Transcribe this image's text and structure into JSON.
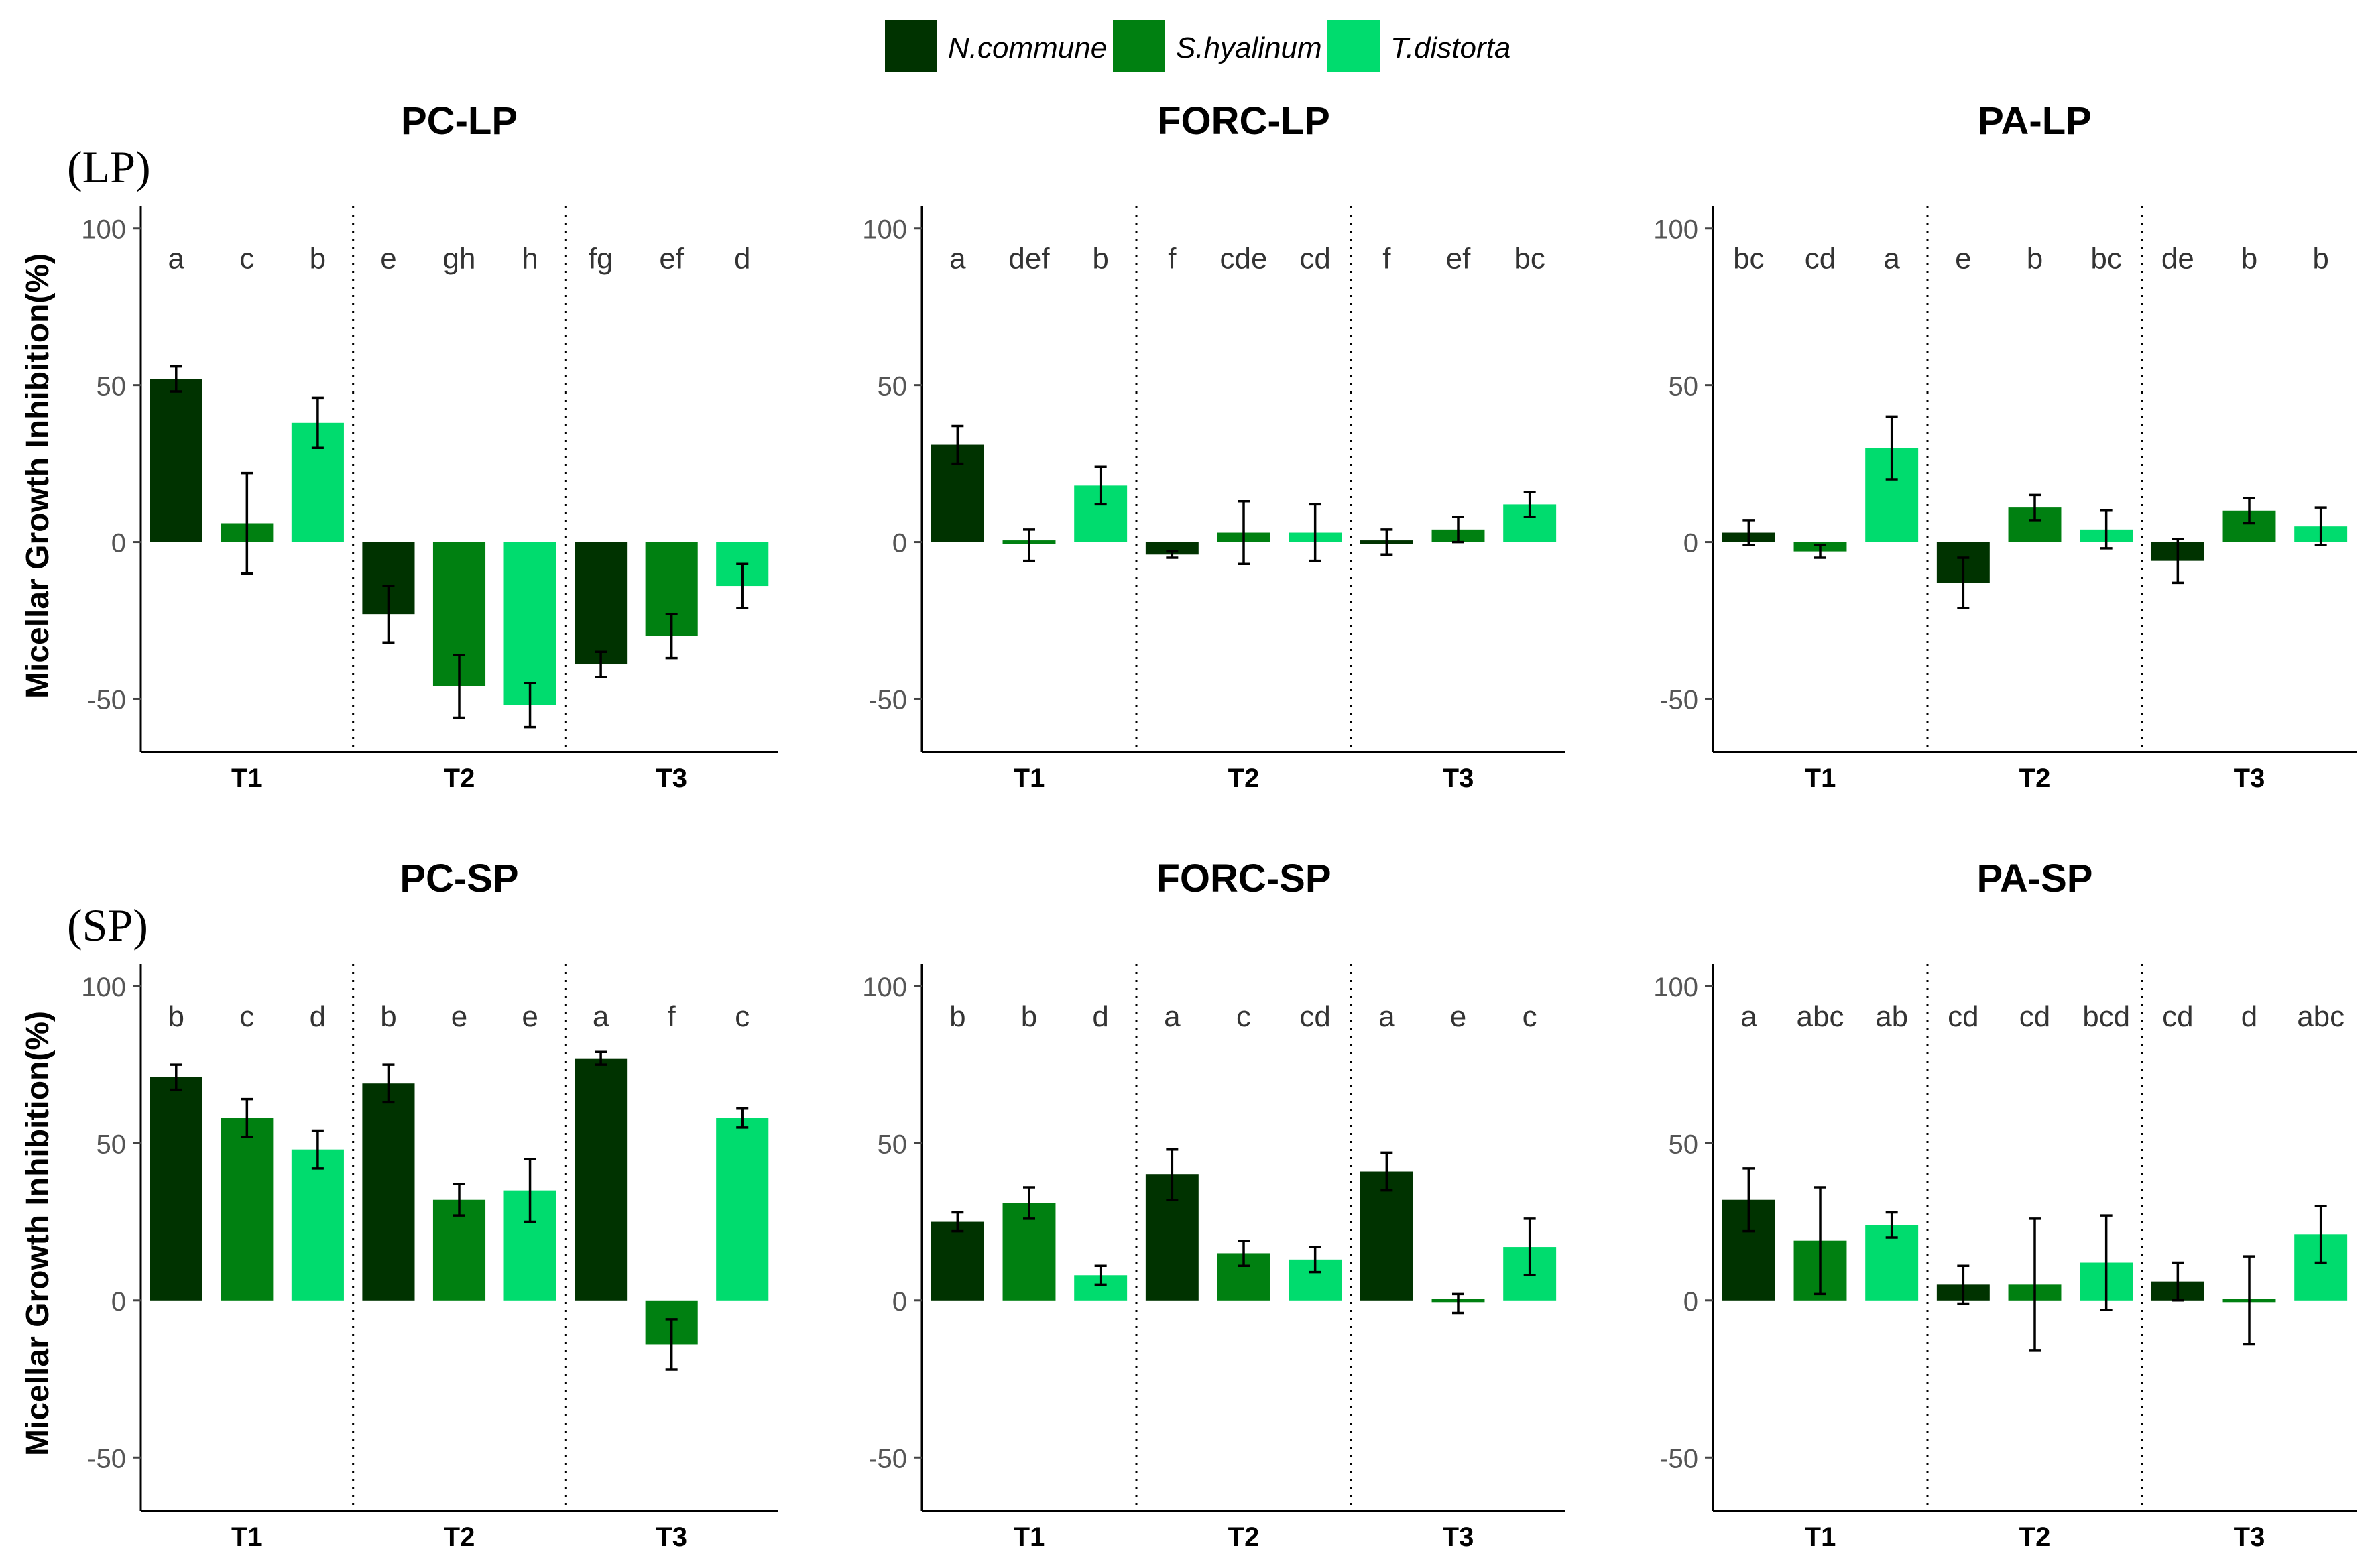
{
  "series_colors": [
    "#003300",
    "#008011",
    "#00DC6E"
  ],
  "legend": {
    "entries": [
      "N.commune",
      "S.hyalinum",
      "T.distorta"
    ]
  },
  "row_labels": [
    "(LP)",
    "(SP)"
  ],
  "ylabel": "Micellar Growth Inhibition(%)",
  "chart_data": [
    {
      "type": "bar",
      "title": "PC-LP",
      "ylim": [
        -67,
        107
      ],
      "yticks": [
        100,
        50,
        0,
        -50
      ],
      "groups": [
        "T1",
        "T2",
        "T3"
      ],
      "series_names": [
        "N.commune",
        "S.hyalinum",
        "T.distorta"
      ],
      "values": [
        52,
        6,
        38,
        -23,
        -46,
        -52,
        -39,
        -30,
        -14
      ],
      "errors": [
        4,
        16,
        8,
        9,
        10,
        7,
        4,
        7,
        7
      ],
      "letters": [
        "a",
        "c",
        "b",
        "e",
        "gh",
        "h",
        "fg",
        "ef",
        "d"
      ]
    },
    {
      "type": "bar",
      "title": "FORC-LP",
      "ylim": [
        -67,
        107
      ],
      "yticks": [
        100,
        50,
        0,
        -50
      ],
      "groups": [
        "T1",
        "T2",
        "T3"
      ],
      "series_names": [
        "N.commune",
        "S.hyalinum",
        "T.distorta"
      ],
      "values": [
        31,
        -1,
        18,
        -4,
        3,
        3,
        0,
        4,
        12
      ],
      "errors": [
        6,
        5,
        6,
        1,
        10,
        9,
        4,
        4,
        4
      ],
      "letters": [
        "a",
        "def",
        "b",
        "f",
        "cde",
        "cd",
        "f",
        "ef",
        "bc"
      ]
    },
    {
      "type": "bar",
      "title": "PA-LP",
      "ylim": [
        -67,
        107
      ],
      "yticks": [
        100,
        50,
        0,
        -50
      ],
      "groups": [
        "T1",
        "T2",
        "T3"
      ],
      "series_names": [
        "N.commune",
        "S.hyalinum",
        "T.distorta"
      ],
      "values": [
        3,
        -3,
        30,
        -13,
        11,
        4,
        -6,
        10,
        5
      ],
      "errors": [
        4,
        2,
        10,
        8,
        4,
        6,
        7,
        4,
        6
      ],
      "letters": [
        "bc",
        "cd",
        "a",
        "e",
        "b",
        "bc",
        "de",
        "b",
        "b"
      ]
    },
    {
      "type": "bar",
      "title": "PC-SP",
      "ylim": [
        -67,
        107
      ],
      "yticks": [
        100,
        50,
        0,
        -50
      ],
      "groups": [
        "T1",
        "T2",
        "T3"
      ],
      "series_names": [
        "N.commune",
        "S.hyalinum",
        "T.distorta"
      ],
      "values": [
        71,
        58,
        48,
        69,
        32,
        35,
        77,
        -14,
        58
      ],
      "errors": [
        4,
        6,
        6,
        6,
        5,
        10,
        2,
        8,
        3
      ],
      "letters": [
        "b",
        "c",
        "d",
        "b",
        "e",
        "e",
        "a",
        "f",
        "c"
      ]
    },
    {
      "type": "bar",
      "title": "FORC-SP",
      "ylim": [
        -67,
        107
      ],
      "yticks": [
        100,
        50,
        0,
        -50
      ],
      "groups": [
        "T1",
        "T2",
        "T3"
      ],
      "series_names": [
        "N.commune",
        "S.hyalinum",
        "T.distorta"
      ],
      "values": [
        25,
        31,
        8,
        40,
        15,
        13,
        41,
        -1,
        17
      ],
      "errors": [
        3,
        5,
        3,
        8,
        4,
        4,
        6,
        3,
        9
      ],
      "letters": [
        "b",
        "b",
        "d",
        "a",
        "c",
        "cd",
        "a",
        "e",
        "c"
      ]
    },
    {
      "type": "bar",
      "title": "PA-SP",
      "ylim": [
        -67,
        107
      ],
      "yticks": [
        100,
        50,
        0,
        -50
      ],
      "groups": [
        "T1",
        "T2",
        "T3"
      ],
      "series_names": [
        "N.commune",
        "S.hyalinum",
        "T.distorta"
      ],
      "values": [
        32,
        19,
        24,
        5,
        5,
        12,
        6,
        0,
        21
      ],
      "errors": [
        10,
        17,
        4,
        6,
        21,
        15,
        6,
        14,
        9
      ],
      "letters": [
        "a",
        "abc",
        "ab",
        "cd",
        "cd",
        "bcd",
        "cd",
        "d",
        "abc"
      ]
    }
  ]
}
